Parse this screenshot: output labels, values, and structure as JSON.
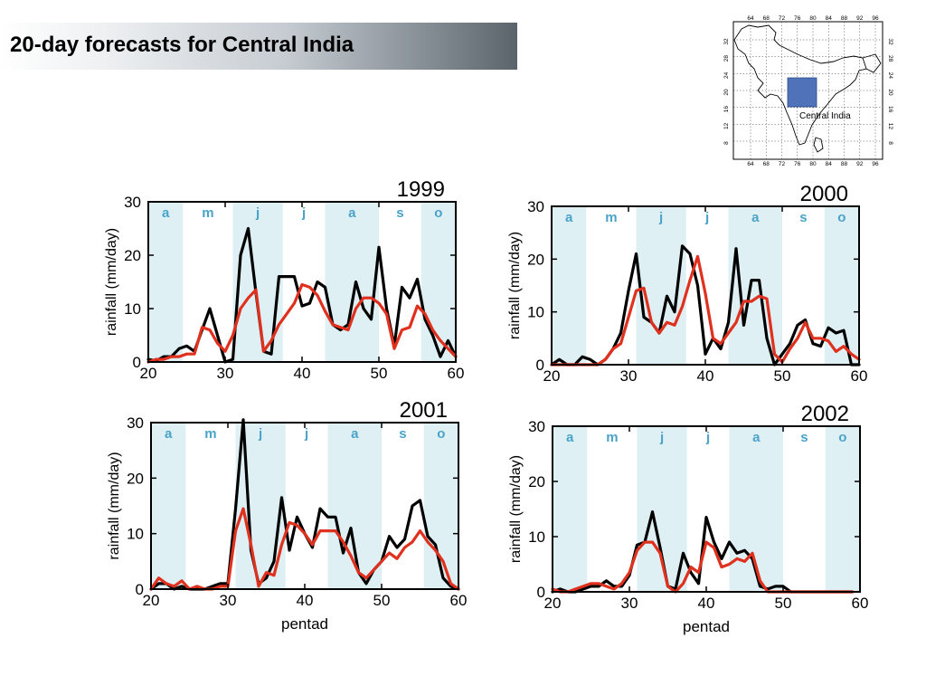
{
  "slide": {
    "title": "20-day forecasts for Central India"
  },
  "map": {
    "label": "Central India",
    "lon_ticks": [
      "64",
      "68",
      "72",
      "76",
      "80",
      "84",
      "88",
      "92",
      "96"
    ],
    "lat_ticks": [
      "32",
      "28",
      "24",
      "20",
      "16",
      "12",
      "8"
    ],
    "box_color": "#4f72b8"
  },
  "colors": {
    "observed": "#000000",
    "forecast": "#e0301e",
    "shade": "#def0f4",
    "month_label": "#4aa3c8"
  },
  "chart_data": [
    {
      "type": "line",
      "title": "1999",
      "xlabel": "",
      "ylabel": "rainfall (mm/day)",
      "xlim": [
        20,
        60
      ],
      "ylim": [
        0,
        30
      ],
      "xticks": [
        "20",
        "30",
        "40",
        "50",
        "60"
      ],
      "yticks": [
        "0",
        "10",
        "20",
        "30"
      ],
      "bands": [
        {
          "label": "a",
          "x0": 20,
          "x1": 24.5,
          "shaded": true
        },
        {
          "label": "m",
          "x0": 24.5,
          "x1": 31,
          "shaded": false
        },
        {
          "label": "j",
          "x0": 31,
          "x1": 37.5,
          "shaded": true
        },
        {
          "label": "j",
          "x0": 37.5,
          "x1": 43,
          "shaded": false
        },
        {
          "label": "a",
          "x0": 43,
          "x1": 50,
          "shaded": true
        },
        {
          "label": "s",
          "x0": 50,
          "x1": 55.5,
          "shaded": false
        },
        {
          "label": "o",
          "x0": 55.5,
          "x1": 60,
          "shaded": true
        }
      ],
      "series": [
        {
          "key": "observed",
          "x": [
            20,
            21,
            22,
            23,
            24,
            25,
            26,
            27,
            28,
            29,
            30,
            31,
            32,
            33,
            34,
            35,
            36,
            37,
            38,
            39,
            40,
            41,
            42,
            43,
            44,
            45,
            46,
            47,
            48,
            49,
            50,
            51,
            52,
            53,
            54,
            55,
            56,
            57,
            58,
            59,
            60
          ],
          "values": [
            0.5,
            0.2,
            1,
            1,
            2.5,
            3,
            2,
            6,
            10,
            5,
            0,
            0.5,
            20,
            25,
            13,
            2,
            1.5,
            16,
            16,
            16,
            10.5,
            11,
            15,
            14,
            7,
            6,
            7,
            15,
            10,
            8,
            21.5,
            10,
            3,
            14,
            12,
            15.5,
            8,
            5,
            1,
            4,
            1
          ]
        },
        {
          "key": "forecast",
          "x": [
            20,
            21,
            22,
            23,
            24,
            25,
            26,
            27,
            28,
            29,
            30,
            31,
            32,
            33,
            34,
            35,
            36,
            37,
            38,
            39,
            40,
            41,
            42,
            43,
            44,
            45,
            46,
            47,
            48,
            49,
            50,
            51,
            52,
            53,
            54,
            55,
            56,
            57,
            58,
            59,
            60
          ],
          "values": [
            0,
            0.5,
            0.5,
            1,
            1,
            1.5,
            1.5,
            6.5,
            6,
            3.5,
            2,
            5,
            10,
            12,
            13.5,
            2,
            4,
            7,
            9,
            11,
            14.5,
            14,
            12.5,
            9.5,
            7,
            6.5,
            6,
            10,
            12,
            12,
            11,
            9,
            2.5,
            6,
            6.5,
            10.5,
            9,
            6,
            4,
            2.5,
            1
          ]
        }
      ]
    },
    {
      "type": "line",
      "title": "2000",
      "xlabel": "",
      "ylabel": "rainfall (mm/day)",
      "xlim": [
        20,
        60
      ],
      "ylim": [
        0,
        30
      ],
      "xticks": [
        "20",
        "30",
        "40",
        "50",
        "60"
      ],
      "yticks": [
        "0",
        "10",
        "20",
        "30"
      ],
      "bands": [
        {
          "label": "a",
          "x0": 20,
          "x1": 24.5,
          "shaded": true
        },
        {
          "label": "m",
          "x0": 24.5,
          "x1": 31,
          "shaded": false
        },
        {
          "label": "j",
          "x0": 31,
          "x1": 37.5,
          "shaded": true
        },
        {
          "label": "j",
          "x0": 37.5,
          "x1": 43,
          "shaded": false
        },
        {
          "label": "a",
          "x0": 43,
          "x1": 50,
          "shaded": true
        },
        {
          "label": "s",
          "x0": 50,
          "x1": 55.5,
          "shaded": false
        },
        {
          "label": "o",
          "x0": 55.5,
          "x1": 60,
          "shaded": true
        }
      ],
      "series": [
        {
          "key": "observed",
          "x": [
            20,
            21,
            22,
            23,
            24,
            25,
            26,
            27,
            28,
            29,
            30,
            31,
            32,
            33,
            34,
            35,
            36,
            37,
            38,
            39,
            40,
            41,
            42,
            43,
            44,
            45,
            46,
            47,
            48,
            49,
            50,
            51,
            52,
            53,
            54,
            55,
            56,
            57,
            58,
            59,
            60
          ],
          "values": [
            0,
            1,
            0,
            0,
            1.5,
            1,
            0,
            1,
            3,
            6,
            14,
            21,
            9,
            8,
            6,
            13,
            10,
            22.5,
            21,
            15,
            2,
            5,
            3,
            8,
            22,
            7.5,
            16,
            16,
            5,
            0,
            2,
            4,
            7.5,
            8.5,
            4,
            3.5,
            7,
            6,
            6.5,
            0,
            0
          ]
        },
        {
          "key": "forecast",
          "x": [
            20,
            21,
            22,
            23,
            24,
            25,
            26,
            27,
            28,
            29,
            30,
            31,
            32,
            33,
            34,
            35,
            36,
            37,
            38,
            39,
            40,
            41,
            42,
            43,
            44,
            45,
            46,
            47,
            48,
            49,
            50,
            51,
            52,
            53,
            54,
            55,
            56,
            57,
            58,
            59,
            60
          ],
          "values": [
            0,
            0,
            0,
            0,
            0,
            0,
            0,
            1,
            3,
            4,
            9,
            14,
            14.5,
            8,
            6,
            8,
            7.5,
            11,
            16,
            20.5,
            13.5,
            5,
            4,
            6,
            8,
            12,
            12,
            13,
            12.5,
            2,
            0.5,
            3,
            5,
            8,
            5,
            5,
            4.5,
            2.5,
            3.5,
            2,
            1
          ]
        }
      ]
    },
    {
      "type": "line",
      "title": "2001",
      "xlabel": "pentad",
      "ylabel": "rainfall (mm/day)",
      "xlim": [
        20,
        60
      ],
      "ylim": [
        0,
        30
      ],
      "xticks": [
        "20",
        "30",
        "40",
        "50",
        "60"
      ],
      "yticks": [
        "0",
        "10",
        "20",
        "30"
      ],
      "bands": [
        {
          "label": "a",
          "x0": 20,
          "x1": 24.5,
          "shaded": true
        },
        {
          "label": "m",
          "x0": 24.5,
          "x1": 31,
          "shaded": false
        },
        {
          "label": "j",
          "x0": 31,
          "x1": 37.5,
          "shaded": true
        },
        {
          "label": "j",
          "x0": 37.5,
          "x1": 43,
          "shaded": false
        },
        {
          "label": "a",
          "x0": 43,
          "x1": 50,
          "shaded": true
        },
        {
          "label": "s",
          "x0": 50,
          "x1": 55.5,
          "shaded": false
        },
        {
          "label": "o",
          "x0": 55.5,
          "x1": 60,
          "shaded": true
        }
      ],
      "series": [
        {
          "key": "observed",
          "x": [
            20,
            21,
            22,
            23,
            24,
            25,
            26,
            27,
            28,
            29,
            30,
            31,
            32,
            33,
            34,
            35,
            36,
            37,
            38,
            39,
            40,
            41,
            42,
            43,
            44,
            45,
            46,
            47,
            48,
            49,
            50,
            51,
            52,
            53,
            54,
            55,
            56,
            57,
            58,
            59,
            60
          ],
          "values": [
            0,
            1,
            1,
            0,
            0.5,
            0,
            0,
            0,
            0.5,
            1,
            1,
            14.5,
            30.5,
            7,
            1,
            2,
            5,
            16.5,
            7,
            13,
            10,
            7.5,
            14.5,
            13,
            13,
            6.5,
            11,
            3,
            1,
            3.5,
            5,
            9.5,
            7.5,
            9,
            15,
            16,
            9.5,
            8,
            2,
            0.5,
            0
          ]
        },
        {
          "key": "forecast",
          "x": [
            20,
            21,
            22,
            23,
            24,
            25,
            26,
            27,
            28,
            29,
            30,
            31,
            32,
            33,
            34,
            35,
            36,
            37,
            38,
            39,
            40,
            41,
            42,
            43,
            44,
            45,
            46,
            47,
            48,
            49,
            50,
            51,
            52,
            53,
            54,
            55,
            56,
            57,
            58,
            59,
            60
          ],
          "values": [
            0,
            2,
            1,
            0.5,
            1.5,
            0,
            0.5,
            0,
            0,
            0.5,
            0.5,
            10.5,
            14.5,
            8,
            0.5,
            3,
            2.5,
            8,
            12,
            11.5,
            10,
            8,
            10.5,
            10.5,
            10.5,
            8.5,
            6,
            3,
            2,
            3.5,
            5,
            6.5,
            5.5,
            7.5,
            8.5,
            10.5,
            8.5,
            7,
            5,
            1,
            0
          ]
        }
      ]
    },
    {
      "type": "line",
      "title": "2002",
      "xlabel": "pentad",
      "ylabel": "rainfall (mm/day)",
      "xlim": [
        20,
        60
      ],
      "ylim": [
        0,
        30
      ],
      "xticks": [
        "20",
        "30",
        "40",
        "50",
        "60"
      ],
      "yticks": [
        "0",
        "10",
        "20",
        "30"
      ],
      "bands": [
        {
          "label": "a",
          "x0": 20,
          "x1": 24.5,
          "shaded": true
        },
        {
          "label": "m",
          "x0": 24.5,
          "x1": 31,
          "shaded": false
        },
        {
          "label": "j",
          "x0": 31,
          "x1": 37.5,
          "shaded": true
        },
        {
          "label": "j",
          "x0": 37.5,
          "x1": 43,
          "shaded": false
        },
        {
          "label": "a",
          "x0": 43,
          "x1": 50,
          "shaded": true
        },
        {
          "label": "s",
          "x0": 50,
          "x1": 55.5,
          "shaded": false
        },
        {
          "label": "o",
          "x0": 55.5,
          "x1": 60,
          "shaded": true
        }
      ],
      "series": [
        {
          "key": "observed",
          "x": [
            20,
            21,
            22,
            23,
            24,
            25,
            26,
            27,
            28,
            29,
            30,
            31,
            32,
            33,
            34,
            35,
            36,
            37,
            38,
            39,
            40,
            41,
            42,
            43,
            44,
            45,
            46,
            47,
            48,
            49,
            50,
            51,
            52,
            53,
            54,
            55,
            56,
            57,
            58,
            59
          ],
          "values": [
            0,
            0.5,
            0,
            0,
            0.5,
            1,
            1,
            2,
            1,
            1,
            3,
            8.5,
            9,
            14.5,
            8,
            1,
            0.5,
            7,
            3.5,
            1.5,
            13.5,
            9,
            6,
            9,
            7,
            7.5,
            6,
            1,
            0.5,
            1,
            1,
            0,
            0,
            0,
            0,
            0,
            0,
            0,
            0,
            0
          ]
        },
        {
          "key": "forecast",
          "x": [
            20,
            21,
            22,
            23,
            24,
            25,
            26,
            27,
            28,
            29,
            30,
            31,
            32,
            33,
            34,
            35,
            36,
            37,
            38,
            39,
            40,
            41,
            42,
            43,
            44,
            45,
            46,
            47,
            48,
            49,
            50,
            51,
            52,
            53,
            54,
            55,
            56,
            57,
            58,
            59
          ],
          "values": [
            0.5,
            0,
            0,
            0.5,
            1,
            1.5,
            1.5,
            1,
            0.5,
            1.5,
            3.5,
            7.5,
            9,
            9,
            7,
            1,
            0,
            1.5,
            4.5,
            3.5,
            9,
            8,
            4.5,
            5,
            6,
            5.5,
            7,
            2,
            0,
            0,
            0,
            0,
            0,
            0,
            0,
            0,
            0,
            0,
            0,
            0
          ]
        }
      ]
    }
  ]
}
